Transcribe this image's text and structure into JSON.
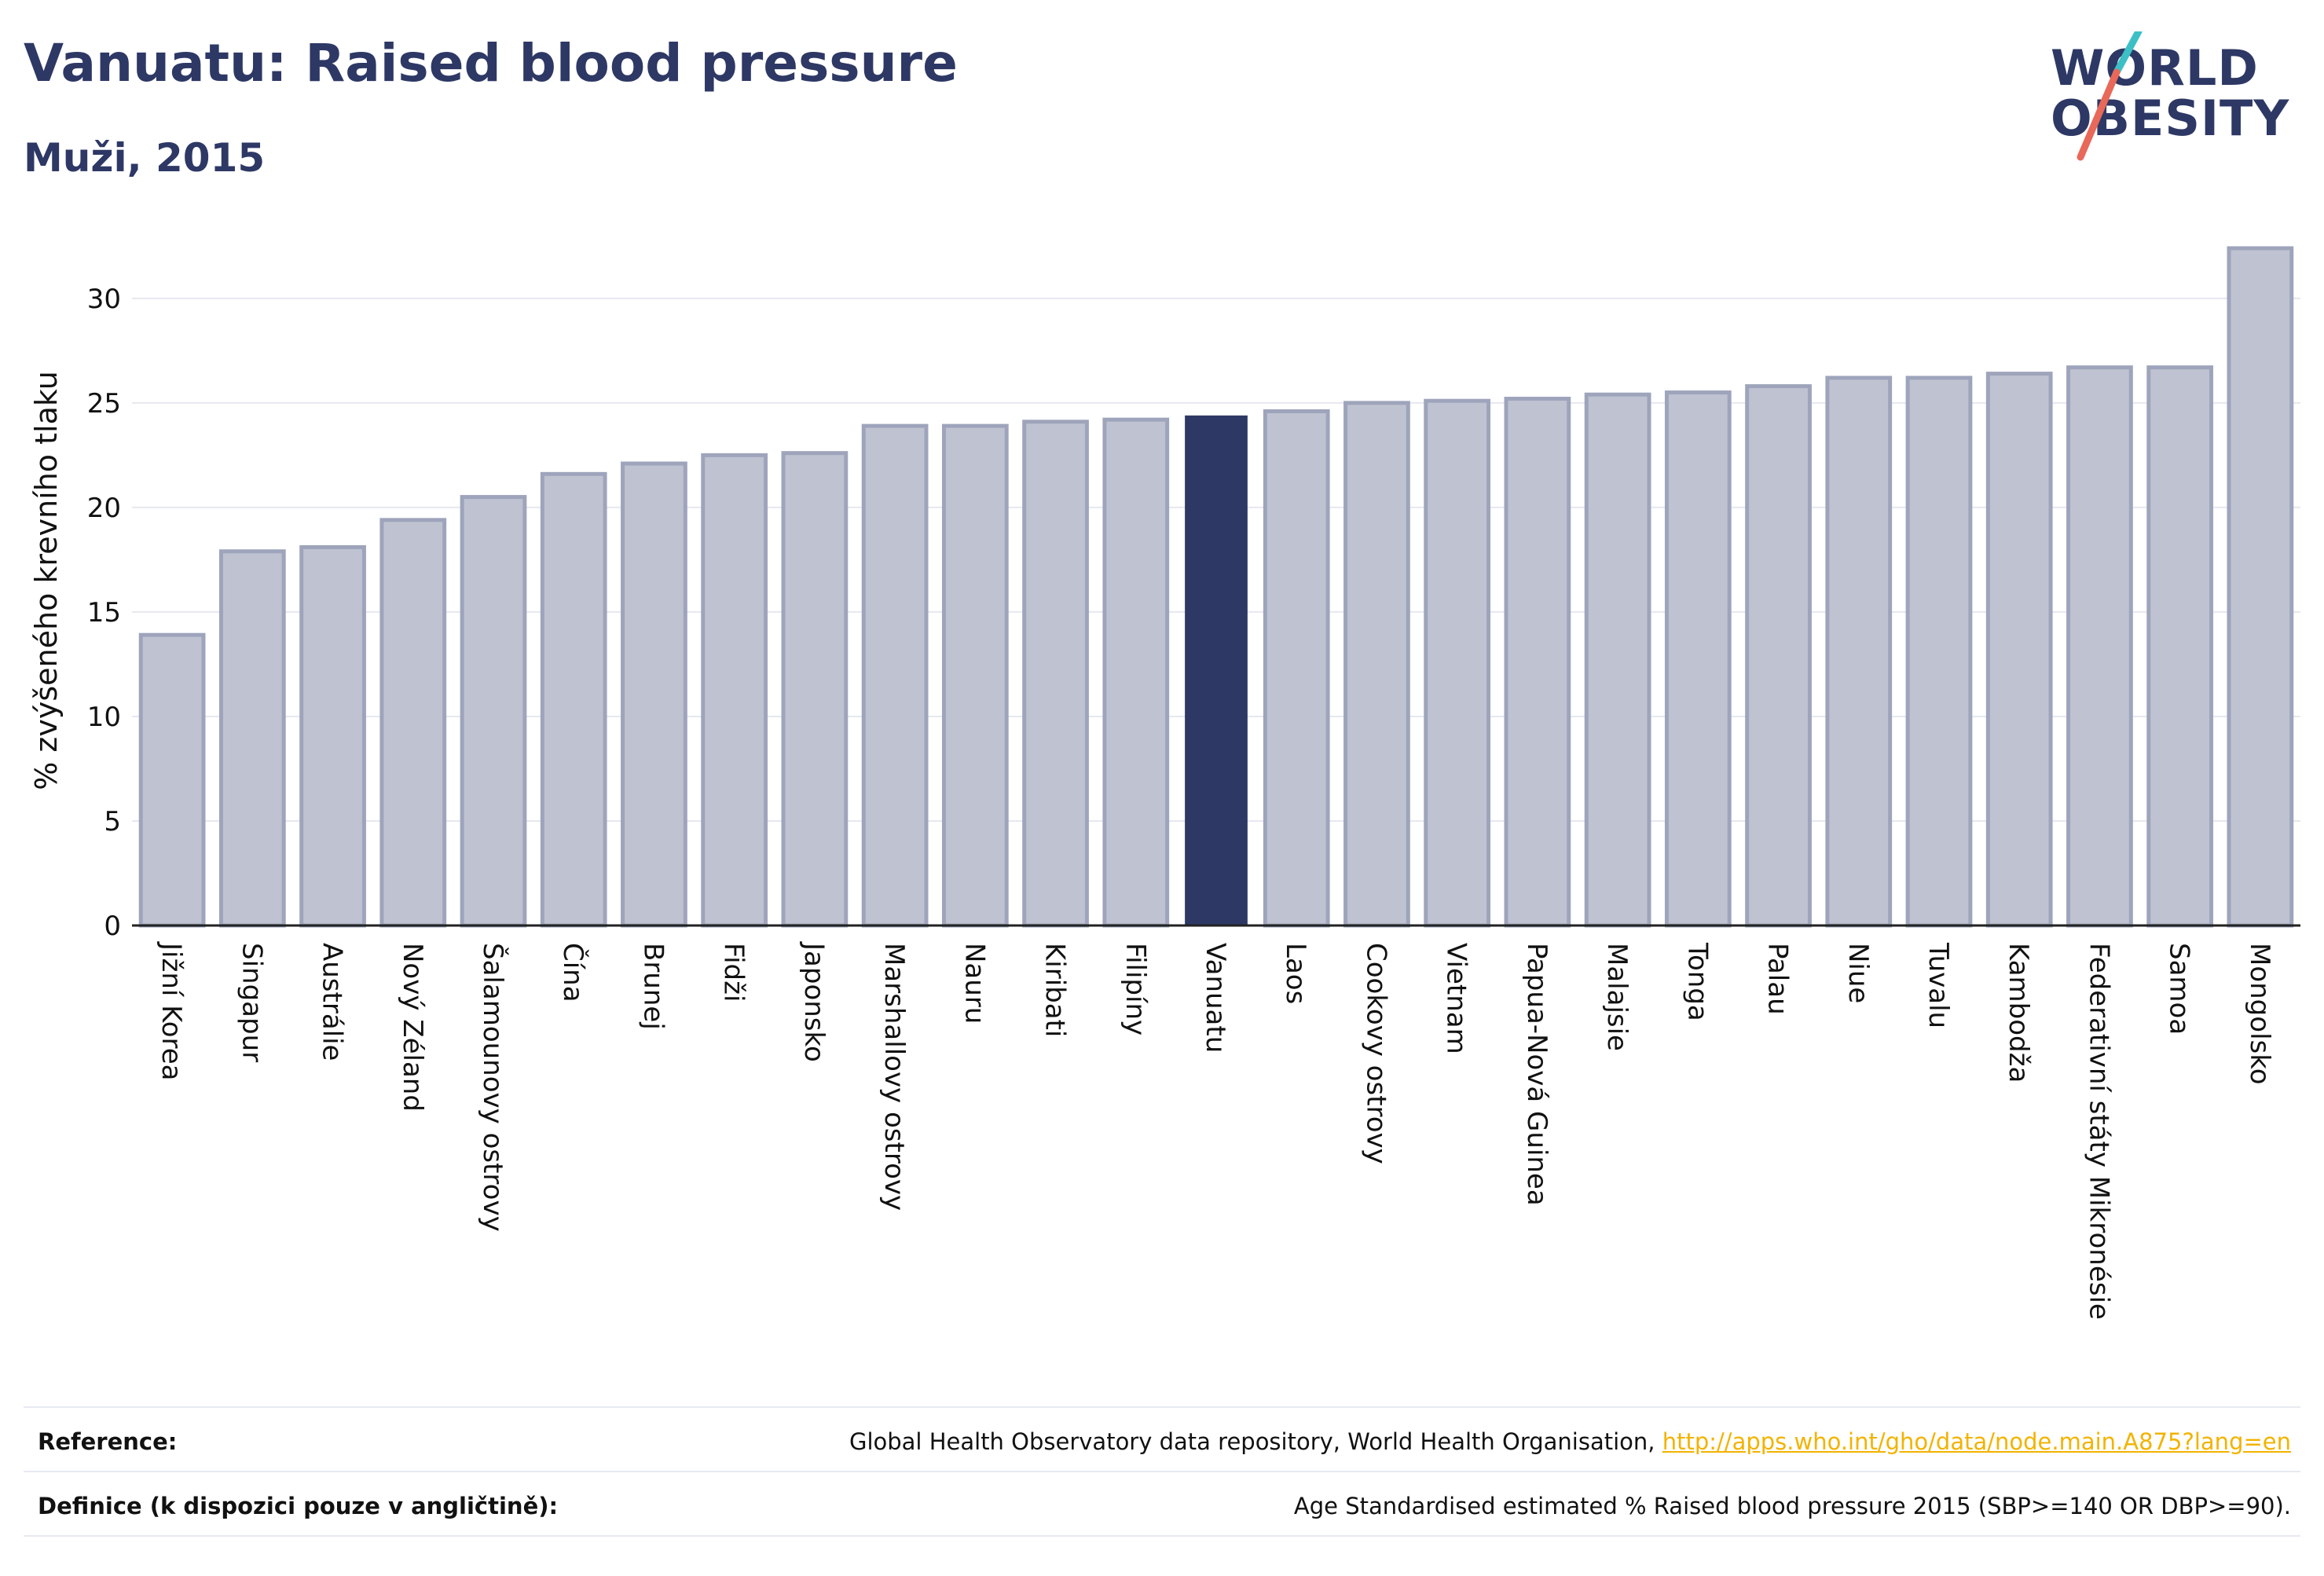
{
  "header": {
    "title": "Vanuatu: Raised blood pressure",
    "subtitle": "Muži, 2015"
  },
  "logo": {
    "line1": "WORLD",
    "line2": "OBESITY",
    "slash_colors": [
      "#3cc0c5",
      "#e8685a"
    ]
  },
  "colors": {
    "highlight_bar": "#2d3865",
    "other_bar_fill": "#bfc3d1",
    "other_bar_stroke": "#9ea4bb",
    "grid": "#e6e8ef"
  },
  "chart_data": {
    "type": "bar",
    "title": "Vanuatu: Raised blood pressure",
    "subtitle": "Muži, 2015",
    "xlabel": "",
    "ylabel": "% zvýšeného krevního tlaku",
    "ylim": [
      0,
      33
    ],
    "yticks": [
      0,
      5,
      10,
      15,
      20,
      25,
      30
    ],
    "grid": true,
    "highlight": "Vanuatu",
    "categories": [
      "Jižní Korea",
      "Singapur",
      "Austrálie",
      "Nový Zéland",
      "Šalamounovy ostrovy",
      "Čína",
      "Brunej",
      "Fidži",
      "Japonsko",
      "Marshallovy ostrovy",
      "Nauru",
      "Kiribati",
      "Filipíny",
      "Vanuatu",
      "Laos",
      "Cookovy ostrovy",
      "Vietnam",
      "Papua-Nová Guinea",
      "Malajsie",
      "Tonga",
      "Palau",
      "Niue",
      "Tuvalu",
      "Kambodža",
      "Federativní státy Mikronésie",
      "Samoa",
      "Mongolsko"
    ],
    "values": [
      13.9,
      17.9,
      18.1,
      19.4,
      20.5,
      21.6,
      22.1,
      22.5,
      22.6,
      23.9,
      23.9,
      24.1,
      24.2,
      24.4,
      24.6,
      25.0,
      25.1,
      25.2,
      25.4,
      25.5,
      25.8,
      26.2,
      26.2,
      26.4,
      26.7,
      26.7,
      32.4
    ]
  },
  "footer": {
    "reference_label": "Reference:",
    "reference_text": "Global Health Observatory data repository, World Health Organisation, ",
    "reference_link": "http://apps.who.int/gho/data/node.main.A875?lang=en",
    "definition_label": "Definice (k dispozici pouze v angličtině):",
    "definition_text": "Age Standardised estimated % Raised blood pressure 2015 (SBP>=140 OR DBP>=90)."
  }
}
